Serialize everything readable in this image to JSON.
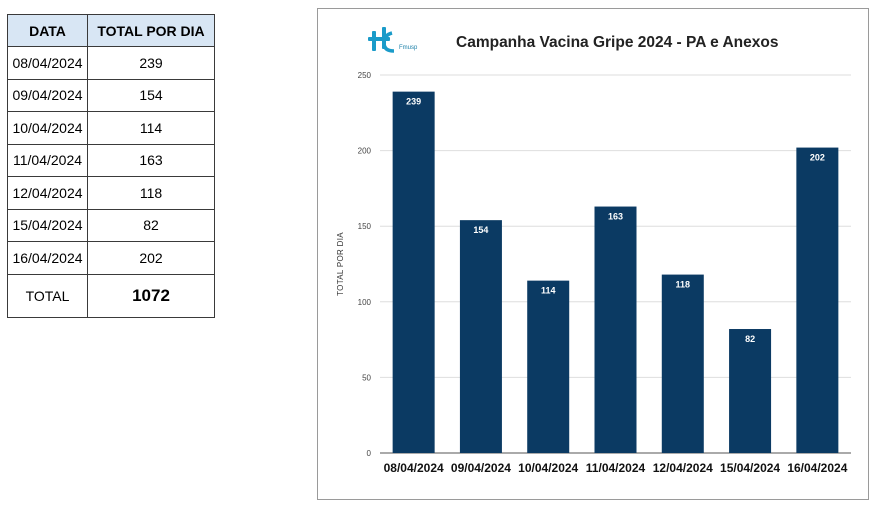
{
  "table": {
    "header_date": "DATA",
    "header_total": "TOTAL POR DIA",
    "rows": [
      {
        "date": "08/04/2024",
        "total": "239"
      },
      {
        "date": "09/04/2024",
        "total": "154"
      },
      {
        "date": "10/04/2024",
        "total": "114"
      },
      {
        "date": "11/04/2024",
        "total": "163"
      },
      {
        "date": "12/04/2024",
        "total": "118"
      },
      {
        "date": "15/04/2024",
        "total": "82"
      },
      {
        "date": "16/04/2024",
        "total": "202"
      }
    ],
    "total_label": "TOTAL",
    "total_value": "1072"
  },
  "logo": {
    "icon": "hc-logo-icon",
    "text": "Fmusp",
    "color": "#1a9bc9"
  },
  "chart_data": {
    "type": "bar",
    "title": "Campanha Vacina Gripe 2024 - PA e Anexos",
    "xlabel": "",
    "ylabel": "TOTAL POR DIA",
    "categories": [
      "08/04/2024",
      "09/04/2024",
      "10/04/2024",
      "11/04/2024",
      "12/04/2024",
      "15/04/2024",
      "16/04/2024"
    ],
    "values": [
      239,
      154,
      114,
      163,
      118,
      82,
      202
    ],
    "ylim": [
      0,
      250
    ],
    "yticks": [
      0,
      50,
      100,
      150,
      200,
      250
    ],
    "grid": true,
    "data_labels": true,
    "bar_color": "#0b3a63"
  }
}
